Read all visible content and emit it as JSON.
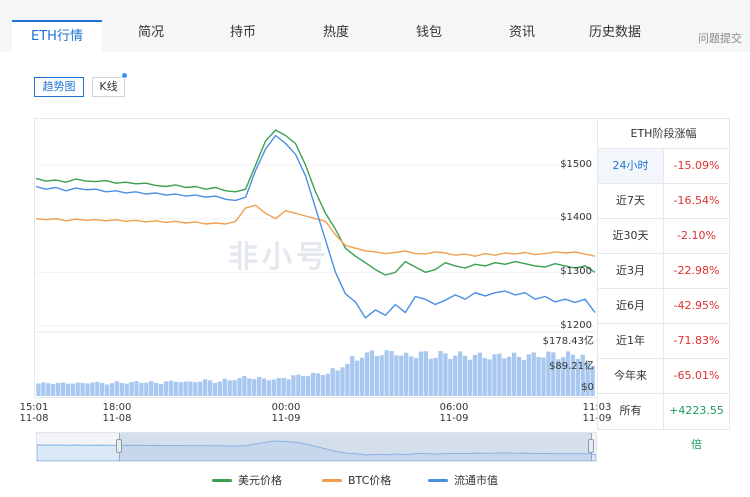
{
  "tabs": [
    {
      "label": "ETH行情",
      "active": true
    },
    {
      "label": "简况"
    },
    {
      "label": "持币"
    },
    {
      "label": "热度"
    },
    {
      "label": "钱包"
    },
    {
      "label": "资讯"
    },
    {
      "label": "历史数据"
    }
  ],
  "feedback_link": "问题提交",
  "toggles": {
    "trend": "趋势图",
    "kline": "K线"
  },
  "watermark": "非小号",
  "chart_data": {
    "type": "line",
    "y_ticks": [
      "$1500",
      "$1400",
      "$1300",
      "$1200"
    ],
    "ylim": [
      1200,
      1500
    ],
    "volume_ticks": [
      "$178.43亿",
      "$89.21亿",
      "$0"
    ],
    "x_ticks": [
      {
        "time": "15:01",
        "date": "11-08"
      },
      {
        "time": "18:00",
        "date": "11-08"
      },
      {
        "time": "00:00",
        "date": "11-09"
      },
      {
        "time": "06:00",
        "date": "11-09"
      },
      {
        "time": "11:03",
        "date": "11-09"
      }
    ],
    "series": [
      {
        "name": "美元价格",
        "color": "#3aa050",
        "values": [
          1475,
          1470,
          1472,
          1468,
          1474,
          1470,
          1469,
          1471,
          1466,
          1468,
          1465,
          1466,
          1462,
          1460,
          1463,
          1458,
          1460,
          1455,
          1458,
          1452,
          1450,
          1455,
          1500,
          1545,
          1565,
          1555,
          1540,
          1500,
          1450,
          1410,
          1380,
          1345,
          1330,
          1318,
          1305,
          1295,
          1300,
          1320,
          1310,
          1300,
          1305,
          1318,
          1312,
          1308,
          1315,
          1312,
          1318,
          1315,
          1320,
          1316,
          1312,
          1310,
          1316,
          1312,
          1308,
          1312,
          1300
        ]
      },
      {
        "name": "BTC价格",
        "color": "#f0a050",
        "values": [
          1400,
          1398,
          1400,
          1396,
          1399,
          1397,
          1398,
          1396,
          1398,
          1395,
          1397,
          1394,
          1396,
          1393,
          1395,
          1392,
          1394,
          1390,
          1392,
          1390,
          1395,
          1420,
          1425,
          1410,
          1400,
          1415,
          1410,
          1405,
          1400,
          1395,
          1370,
          1350,
          1345,
          1340,
          1338,
          1335,
          1337,
          1340,
          1335,
          1334,
          1338,
          1336,
          1332,
          1334,
          1330,
          1335,
          1332,
          1336,
          1334,
          1337,
          1333,
          1335,
          1338,
          1336,
          1338,
          1334,
          1330
        ]
      },
      {
        "name": "流通市值",
        "color": "#4a90e2",
        "values": [
          1460,
          1455,
          1458,
          1452,
          1457,
          1454,
          1455,
          1450,
          1452,
          1448,
          1450,
          1446,
          1448,
          1444,
          1446,
          1442,
          1444,
          1440,
          1442,
          1436,
          1434,
          1440,
          1490,
          1530,
          1555,
          1540,
          1520,
          1480,
          1420,
          1360,
          1300,
          1260,
          1245,
          1215,
          1230,
          1220,
          1240,
          1225,
          1255,
          1250,
          1240,
          1248,
          1258,
          1250,
          1262,
          1256,
          1262,
          1265,
          1258,
          1262,
          1250,
          1255,
          1245,
          1250,
          1244,
          1250,
          1225
        ]
      }
    ],
    "volume_relative": [
      0.22,
      0.23,
      0.22,
      0.23,
      0.22,
      0.24,
      0.23,
      0.22,
      0.24,
      0.23,
      0.25,
      0.24,
      0.23,
      0.25,
      0.26,
      0.24,
      0.26,
      0.27,
      0.25,
      0.28,
      0.3,
      0.33,
      0.31,
      0.3,
      0.29,
      0.32,
      0.35,
      0.37,
      0.38,
      0.4,
      0.45,
      0.55,
      0.65,
      0.72,
      0.76,
      0.74,
      0.78,
      0.7,
      0.72,
      0.74,
      0.7,
      0.73,
      0.71,
      0.72,
      0.69,
      0.71,
      0.68,
      0.72,
      0.7,
      0.69,
      0.71,
      0.72,
      0.73,
      0.7,
      0.72,
      0.71,
      0.55
    ]
  },
  "side_table": {
    "title": "ETH阶段涨幅",
    "rows": [
      {
        "period": "24小时",
        "value": "-15.09%",
        "trend": "neg",
        "active": true
      },
      {
        "period": "近7天",
        "value": "-16.54%",
        "trend": "neg"
      },
      {
        "period": "近30天",
        "value": "-2.10%",
        "trend": "neg"
      },
      {
        "period": "近3月",
        "value": "-22.98%",
        "trend": "neg"
      },
      {
        "period": "近6月",
        "value": "-42.95%",
        "trend": "neg"
      },
      {
        "period": "近1年",
        "value": "-71.83%",
        "trend": "neg"
      },
      {
        "period": "今年来",
        "value": "-65.01%",
        "trend": "neg"
      },
      {
        "period": "所有",
        "value": "+4223.55倍",
        "trend": "pos"
      }
    ]
  },
  "legend": [
    {
      "label": "美元价格",
      "color": "#3aa050"
    },
    {
      "label": "BTC价格",
      "color": "#f0a050"
    },
    {
      "label": "流通市值",
      "color": "#4a90e2"
    }
  ]
}
